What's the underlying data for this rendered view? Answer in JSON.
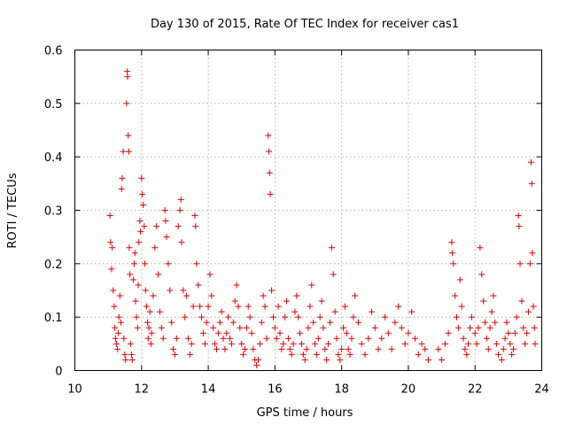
{
  "chart_data": {
    "type": "scatter",
    "title": "Day 130 of 2015, Rate Of TEC Index for receiver cas1",
    "xlabel": "GPS time / hours",
    "ylabel": "ROTI / TECUs",
    "xlim": [
      10,
      24
    ],
    "ylim": [
      0,
      0.6
    ],
    "xticks": [
      10,
      12,
      14,
      16,
      18,
      20,
      22,
      24
    ],
    "yticks": [
      0,
      0.1,
      0.2,
      0.3,
      0.4,
      0.5,
      0.6
    ],
    "xtick_labels": [
      "10",
      "12",
      "14",
      "16",
      "18",
      "20",
      "22",
      "24"
    ],
    "ytick_labels": [
      "0",
      "0.1",
      "0.2",
      "0.3",
      "0.4",
      "0.5",
      "0.6"
    ],
    "grid": true,
    "marker": "+",
    "series_color": "#e00000",
    "series": [
      {
        "name": "ROTI",
        "points": [
          [
            11.05,
            0.29
          ],
          [
            11.07,
            0.24
          ],
          [
            11.1,
            0.19
          ],
          [
            11.12,
            0.23
          ],
          [
            11.15,
            0.15
          ],
          [
            11.18,
            0.12
          ],
          [
            11.2,
            0.08
          ],
          [
            11.22,
            0.06
          ],
          [
            11.25,
            0.05
          ],
          [
            11.28,
            0.04
          ],
          [
            11.3,
            0.07
          ],
          [
            11.32,
            0.1
          ],
          [
            11.35,
            0.14
          ],
          [
            11.38,
            0.09
          ],
          [
            11.4,
            0.34
          ],
          [
            11.42,
            0.36
          ],
          [
            11.45,
            0.41
          ],
          [
            11.47,
            0.06
          ],
          [
            11.5,
            0.03
          ],
          [
            11.52,
            0.02
          ],
          [
            11.55,
            0.5
          ],
          [
            11.57,
            0.56
          ],
          [
            11.58,
            0.55
          ],
          [
            11.6,
            0.44
          ],
          [
            11.62,
            0.41
          ],
          [
            11.63,
            0.23
          ],
          [
            11.65,
            0.18
          ],
          [
            11.67,
            0.05
          ],
          [
            11.7,
            0.03
          ],
          [
            11.72,
            0.02
          ],
          [
            11.75,
            0.17
          ],
          [
            11.78,
            0.2
          ],
          [
            11.8,
            0.22
          ],
          [
            11.82,
            0.13
          ],
          [
            11.85,
            0.1
          ],
          [
            11.88,
            0.08
          ],
          [
            11.9,
            0.16
          ],
          [
            11.92,
            0.24
          ],
          [
            11.95,
            0.28
          ],
          [
            11.97,
            0.26
          ],
          [
            12.0,
            0.36
          ],
          [
            12.02,
            0.33
          ],
          [
            12.05,
            0.31
          ],
          [
            12.08,
            0.27
          ],
          [
            12.1,
            0.2
          ],
          [
            12.12,
            0.15
          ],
          [
            12.15,
            0.12
          ],
          [
            12.18,
            0.09
          ],
          [
            12.2,
            0.06
          ],
          [
            12.22,
            0.08
          ],
          [
            12.25,
            0.11
          ],
          [
            12.28,
            0.05
          ],
          [
            12.3,
            0.07
          ],
          [
            12.35,
            0.14
          ],
          [
            12.4,
            0.23
          ],
          [
            12.45,
            0.27
          ],
          [
            12.5,
            0.18
          ],
          [
            12.55,
            0.11
          ],
          [
            12.6,
            0.08
          ],
          [
            12.65,
            0.06
          ],
          [
            12.7,
            0.3
          ],
          [
            12.72,
            0.28
          ],
          [
            12.75,
            0.25
          ],
          [
            12.8,
            0.2
          ],
          [
            12.85,
            0.15
          ],
          [
            12.9,
            0.09
          ],
          [
            12.95,
            0.04
          ],
          [
            13.0,
            0.03
          ],
          [
            13.05,
            0.06
          ],
          [
            13.1,
            0.27
          ],
          [
            13.15,
            0.3
          ],
          [
            13.18,
            0.32
          ],
          [
            13.2,
            0.24
          ],
          [
            13.25,
            0.15
          ],
          [
            13.3,
            0.1
          ],
          [
            13.35,
            0.14
          ],
          [
            13.4,
            0.06
          ],
          [
            13.45,
            0.03
          ],
          [
            13.5,
            0.05
          ],
          [
            13.55,
            0.12
          ],
          [
            13.6,
            0.29
          ],
          [
            13.62,
            0.27
          ],
          [
            13.65,
            0.2
          ],
          [
            13.7,
            0.16
          ],
          [
            13.75,
            0.12
          ],
          [
            13.8,
            0.1
          ],
          [
            13.85,
            0.07
          ],
          [
            13.9,
            0.05
          ],
          [
            13.95,
            0.09
          ],
          [
            14.0,
            0.12
          ],
          [
            14.05,
            0.18
          ],
          [
            14.1,
            0.14
          ],
          [
            14.15,
            0.08
          ],
          [
            14.2,
            0.05
          ],
          [
            14.25,
            0.04
          ],
          [
            14.3,
            0.07
          ],
          [
            14.35,
            0.09
          ],
          [
            14.4,
            0.11
          ],
          [
            14.45,
            0.06
          ],
          [
            14.5,
            0.04
          ],
          [
            14.55,
            0.07
          ],
          [
            14.6,
            0.1
          ],
          [
            14.65,
            0.06
          ],
          [
            14.7,
            0.05
          ],
          [
            14.75,
            0.09
          ],
          [
            14.8,
            0.13
          ],
          [
            14.85,
            0.16
          ],
          [
            14.9,
            0.12
          ],
          [
            14.95,
            0.08
          ],
          [
            15.0,
            0.05
          ],
          [
            15.05,
            0.03
          ],
          [
            15.1,
            0.04
          ],
          [
            15.15,
            0.08
          ],
          [
            15.2,
            0.12
          ],
          [
            15.25,
            0.1
          ],
          [
            15.3,
            0.07
          ],
          [
            15.35,
            0.04
          ],
          [
            15.4,
            0.02
          ],
          [
            15.45,
            0.01
          ],
          [
            15.5,
            0.02
          ],
          [
            15.55,
            0.05
          ],
          [
            15.6,
            0.09
          ],
          [
            15.65,
            0.14
          ],
          [
            15.7,
            0.12
          ],
          [
            15.75,
            0.06
          ],
          [
            15.8,
            0.44
          ],
          [
            15.82,
            0.41
          ],
          [
            15.84,
            0.37
          ],
          [
            15.86,
            0.33
          ],
          [
            15.9,
            0.15
          ],
          [
            15.95,
            0.1
          ],
          [
            16.0,
            0.08
          ],
          [
            16.05,
            0.06
          ],
          [
            16.1,
            0.12
          ],
          [
            16.15,
            0.07
          ],
          [
            16.2,
            0.04
          ],
          [
            16.25,
            0.05
          ],
          [
            16.3,
            0.1
          ],
          [
            16.35,
            0.13
          ],
          [
            16.4,
            0.06
          ],
          [
            16.45,
            0.04
          ],
          [
            16.5,
            0.03
          ],
          [
            16.55,
            0.05
          ],
          [
            16.6,
            0.11
          ],
          [
            16.65,
            0.14
          ],
          [
            16.7,
            0.1
          ],
          [
            16.75,
            0.07
          ],
          [
            16.8,
            0.05
          ],
          [
            16.85,
            0.03
          ],
          [
            16.9,
            0.02
          ],
          [
            16.95,
            0.04
          ],
          [
            17.0,
            0.08
          ],
          [
            17.05,
            0.12
          ],
          [
            17.1,
            0.16
          ],
          [
            17.15,
            0.09
          ],
          [
            17.2,
            0.05
          ],
          [
            17.25,
            0.03
          ],
          [
            17.3,
            0.06
          ],
          [
            17.35,
            0.1
          ],
          [
            17.4,
            0.13
          ],
          [
            17.45,
            0.08
          ],
          [
            17.5,
            0.04
          ],
          [
            17.55,
            0.02
          ],
          [
            17.6,
            0.05
          ],
          [
            17.65,
            0.09
          ],
          [
            17.7,
            0.23
          ],
          [
            17.75,
            0.18
          ],
          [
            17.8,
            0.11
          ],
          [
            17.85,
            0.06
          ],
          [
            17.9,
            0.03
          ],
          [
            17.95,
            0.02
          ],
          [
            18.0,
            0.04
          ],
          [
            18.05,
            0.08
          ],
          [
            18.1,
            0.12
          ],
          [
            18.15,
            0.07
          ],
          [
            18.2,
            0.04
          ],
          [
            18.25,
            0.03
          ],
          [
            18.3,
            0.06
          ],
          [
            18.35,
            0.1
          ],
          [
            18.4,
            0.14
          ],
          [
            18.5,
            0.09
          ],
          [
            18.6,
            0.05
          ],
          [
            18.7,
            0.03
          ],
          [
            18.8,
            0.06
          ],
          [
            18.9,
            0.11
          ],
          [
            19.0,
            0.08
          ],
          [
            19.1,
            0.04
          ],
          [
            19.2,
            0.06
          ],
          [
            19.3,
            0.1
          ],
          [
            19.4,
            0.07
          ],
          [
            19.5,
            0.04
          ],
          [
            19.6,
            0.09
          ],
          [
            19.7,
            0.12
          ],
          [
            19.8,
            0.08
          ],
          [
            19.9,
            0.05
          ],
          [
            20.0,
            0.07
          ],
          [
            20.1,
            0.11
          ],
          [
            20.2,
            0.06
          ],
          [
            20.3,
            0.03
          ],
          [
            20.4,
            0.05
          ],
          [
            20.5,
            0.04
          ],
          [
            20.6,
            0.02
          ],
          [
            20.9,
            0.04
          ],
          [
            21.0,
            0.02
          ],
          [
            21.1,
            0.05
          ],
          [
            21.2,
            0.07
          ],
          [
            21.3,
            0.24
          ],
          [
            21.32,
            0.22
          ],
          [
            21.35,
            0.2
          ],
          [
            21.4,
            0.14
          ],
          [
            21.45,
            0.1
          ],
          [
            21.5,
            0.08
          ],
          [
            21.55,
            0.17
          ],
          [
            21.6,
            0.12
          ],
          [
            21.65,
            0.06
          ],
          [
            21.7,
            0.04
          ],
          [
            21.75,
            0.03
          ],
          [
            21.8,
            0.05
          ],
          [
            21.85,
            0.08
          ],
          [
            21.9,
            0.1
          ],
          [
            22.0,
            0.07
          ],
          [
            22.05,
            0.05
          ],
          [
            22.1,
            0.08
          ],
          [
            22.15,
            0.23
          ],
          [
            22.2,
            0.18
          ],
          [
            22.25,
            0.13
          ],
          [
            22.3,
            0.09
          ],
          [
            22.35,
            0.06
          ],
          [
            22.4,
            0.04
          ],
          [
            22.45,
            0.08
          ],
          [
            22.5,
            0.11
          ],
          [
            22.55,
            0.14
          ],
          [
            22.6,
            0.09
          ],
          [
            22.65,
            0.05
          ],
          [
            22.7,
            0.03
          ],
          [
            22.8,
            0.02
          ],
          [
            22.85,
            0.04
          ],
          [
            22.9,
            0.06
          ],
          [
            22.95,
            0.09
          ],
          [
            23.0,
            0.07
          ],
          [
            23.05,
            0.05
          ],
          [
            23.1,
            0.03
          ],
          [
            23.15,
            0.04
          ],
          [
            23.2,
            0.07
          ],
          [
            23.25,
            0.1
          ],
          [
            23.3,
            0.29
          ],
          [
            23.32,
            0.27
          ],
          [
            23.35,
            0.2
          ],
          [
            23.4,
            0.13
          ],
          [
            23.45,
            0.08
          ],
          [
            23.5,
            0.05
          ],
          [
            23.55,
            0.07
          ],
          [
            23.6,
            0.11
          ],
          [
            23.65,
            0.2
          ],
          [
            23.68,
            0.39
          ],
          [
            23.7,
            0.35
          ],
          [
            23.72,
            0.22
          ],
          [
            23.75,
            0.12
          ],
          [
            23.78,
            0.08
          ],
          [
            23.8,
            0.05
          ]
        ]
      }
    ]
  }
}
